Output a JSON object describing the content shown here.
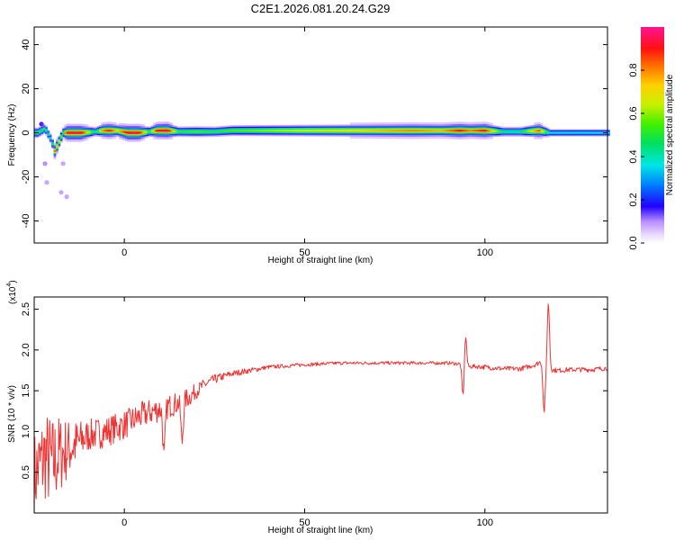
{
  "title": "C2E1.2026.081.20.24.G29",
  "chart_data": [
    {
      "type": "heatmap",
      "xlabel": "Height of straight line (km)",
      "ylabel": "Frequency (Hz)",
      "xlim": [
        -25,
        134
      ],
      "ylim": [
        -50,
        48
      ],
      "xticks": [
        "0",
        "50",
        "100"
      ],
      "xtick_values": [
        0,
        50,
        100
      ],
      "yticks": [
        "40",
        "20",
        "0",
        "-20",
        "-40"
      ],
      "ytick_values": [
        40,
        20,
        0,
        -20,
        -40
      ],
      "colorbar": {
        "label": "Normalized spectral amplitude",
        "ticks": [
          "0.0",
          "0.2",
          "0.4",
          "0.6",
          "0.8"
        ],
        "tick_values": [
          0.0,
          0.2,
          0.4,
          0.6,
          0.8
        ],
        "range": [
          0,
          1
        ]
      },
      "ridge": [
        {
          "x": -24,
          "y": 0,
          "a": 0.5
        },
        {
          "x": -22,
          "y": 2,
          "a": 0.45
        },
        {
          "x": -20,
          "y": -4,
          "a": 0.4
        },
        {
          "x": -19.5,
          "y": -9,
          "a": 0.85
        },
        {
          "x": -17,
          "y": 0,
          "a": 0.5
        },
        {
          "x": -16,
          "y": 0,
          "a": 0.95
        },
        {
          "x": -12,
          "y": 0,
          "a": 0.95
        },
        {
          "x": -8,
          "y": 0.5,
          "a": 0.4
        },
        {
          "x": -6,
          "y": 1,
          "a": 0.8
        },
        {
          "x": -4,
          "y": 1,
          "a": 0.9
        },
        {
          "x": -2,
          "y": 1,
          "a": 0.7
        },
        {
          "x": 1,
          "y": 0,
          "a": 0.95
        },
        {
          "x": 4,
          "y": 0,
          "a": 0.95
        },
        {
          "x": 7,
          "y": 0.5,
          "a": 0.5
        },
        {
          "x": 9,
          "y": 1,
          "a": 0.9
        },
        {
          "x": 12,
          "y": 1,
          "a": 0.95
        },
        {
          "x": 15,
          "y": 0.5,
          "a": 0.5
        },
        {
          "x": 20,
          "y": 0.5,
          "a": 0.55
        },
        {
          "x": 25,
          "y": 0.5,
          "a": 0.5
        },
        {
          "x": 30,
          "y": 1,
          "a": 0.55
        },
        {
          "x": 40,
          "y": 1,
          "a": 0.6
        },
        {
          "x": 50,
          "y": 1,
          "a": 0.65
        },
        {
          "x": 60,
          "y": 1,
          "a": 0.7
        },
        {
          "x": 70,
          "y": 1,
          "a": 0.75
        },
        {
          "x": 80,
          "y": 1,
          "a": 0.8
        },
        {
          "x": 88,
          "y": 1,
          "a": 0.75
        },
        {
          "x": 93,
          "y": 1,
          "a": 0.9
        },
        {
          "x": 96,
          "y": 1,
          "a": 0.8
        },
        {
          "x": 100,
          "y": 1,
          "a": 0.9
        },
        {
          "x": 105,
          "y": 0.5,
          "a": 0.45
        },
        {
          "x": 110,
          "y": 0.5,
          "a": 0.45
        },
        {
          "x": 115,
          "y": 1,
          "a": 0.85
        },
        {
          "x": 118,
          "y": 0,
          "a": 0.35
        },
        {
          "x": 125,
          "y": 0,
          "a": 0.35
        },
        {
          "x": 134,
          "y": 0,
          "a": 0.35
        }
      ],
      "scatter": [
        {
          "x": -21.5,
          "y": -22.5,
          "a": 0.08
        },
        {
          "x": -17,
          "y": -14,
          "a": 0.08
        },
        {
          "x": -17.5,
          "y": -27,
          "a": 0.08
        },
        {
          "x": -16,
          "y": -29,
          "a": 0.08
        },
        {
          "x": -22,
          "y": -14,
          "a": 0.1
        },
        {
          "x": -23,
          "y": 4,
          "a": 0.15
        }
      ]
    },
    {
      "type": "line",
      "xlabel": "Height of straight line (km)",
      "ylabel": "SNR (10 * v/v)",
      "y_multiplier_label": "(x10",
      "y_multiplier_exp": "4",
      "xlim": [
        -25,
        134
      ],
      "ylim": [
        0,
        2.65
      ],
      "xticks": [
        "0",
        "50",
        "100"
      ],
      "xtick_values": [
        0,
        50,
        100
      ],
      "yticks": [
        "0.5",
        "1.0",
        "1.5",
        "2.0",
        "2.5"
      ],
      "ytick_values": [
        0.5,
        1.0,
        1.5,
        2.0,
        2.5
      ],
      "color": "#ee3333",
      "trend": {
        "x": [
          -25,
          -22,
          -20,
          -18,
          -15,
          -10,
          -5,
          0,
          5,
          10,
          15,
          18,
          20,
          22,
          25,
          30,
          35,
          40,
          50,
          60,
          70,
          80,
          90,
          93,
          95,
          97,
          100,
          105,
          110,
          114,
          116,
          117,
          120,
          125,
          130,
          134
        ],
        "y": [
          0.45,
          0.7,
          0.6,
          0.72,
          0.8,
          0.95,
          1.0,
          1.08,
          1.2,
          1.28,
          1.35,
          1.42,
          1.5,
          1.57,
          1.64,
          1.71,
          1.75,
          1.79,
          1.82,
          1.84,
          1.84,
          1.84,
          1.84,
          1.83,
          1.79,
          1.8,
          1.79,
          1.77,
          1.77,
          1.82,
          1.87,
          1.76,
          1.75,
          1.76,
          1.76,
          1.78
        ]
      },
      "noise": {
        "x": [
          -25,
          -20,
          -15,
          -10,
          0,
          10,
          18,
          22,
          30,
          40,
          60,
          90,
          100,
          134
        ],
        "amp": [
          0.55,
          0.6,
          0.35,
          0.2,
          0.18,
          0.16,
          0.12,
          0.07,
          0.04,
          0.025,
          0.02,
          0.02,
          0.03,
          0.03
        ]
      },
      "spikes": [
        {
          "x": 94.0,
          "dy": -0.42
        },
        {
          "x": 94.6,
          "dy": 0.42
        },
        {
          "x": 116.4,
          "dy": -0.58
        },
        {
          "x": 117.6,
          "dy": 0.8
        },
        {
          "x": 11,
          "dy": -0.62
        },
        {
          "x": 16,
          "dy": -0.5
        }
      ]
    }
  ]
}
